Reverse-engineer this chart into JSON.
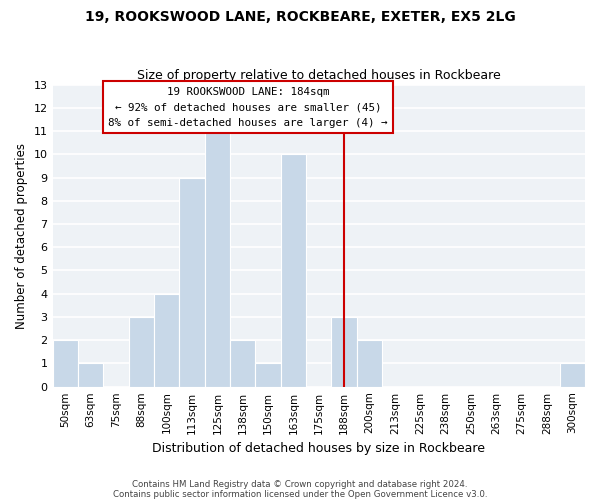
{
  "title": "19, ROOKSWOOD LANE, ROCKBEARE, EXETER, EX5 2LG",
  "subtitle": "Size of property relative to detached houses in Rockbeare",
  "xlabel": "Distribution of detached houses by size in Rockbeare",
  "ylabel": "Number of detached properties",
  "bin_labels": [
    "50sqm",
    "63sqm",
    "75sqm",
    "88sqm",
    "100sqm",
    "113sqm",
    "125sqm",
    "138sqm",
    "150sqm",
    "163sqm",
    "175sqm",
    "188sqm",
    "200sqm",
    "213sqm",
    "225sqm",
    "238sqm",
    "250sqm",
    "263sqm",
    "275sqm",
    "288sqm",
    "300sqm"
  ],
  "bar_values": [
    2,
    1,
    0,
    3,
    4,
    9,
    11,
    2,
    1,
    10,
    0,
    3,
    2,
    0,
    0,
    0,
    0,
    0,
    0,
    0,
    1
  ],
  "bar_color": "#c8d8e8",
  "subject_line_idx": 11,
  "subject_line_color": "#cc0000",
  "ylim": [
    0,
    13
  ],
  "yticks": [
    0,
    1,
    2,
    3,
    4,
    5,
    6,
    7,
    8,
    9,
    10,
    11,
    12,
    13
  ],
  "annotation_title": "19 ROOKSWOOD LANE: 184sqm",
  "annotation_line1": "← 92% of detached houses are smaller (45)",
  "annotation_line2": "8% of semi-detached houses are larger (4) →",
  "footer1": "Contains HM Land Registry data © Crown copyright and database right 2024.",
  "footer2": "Contains public sector information licensed under the Open Government Licence v3.0.",
  "bg_color": "#eef2f6"
}
